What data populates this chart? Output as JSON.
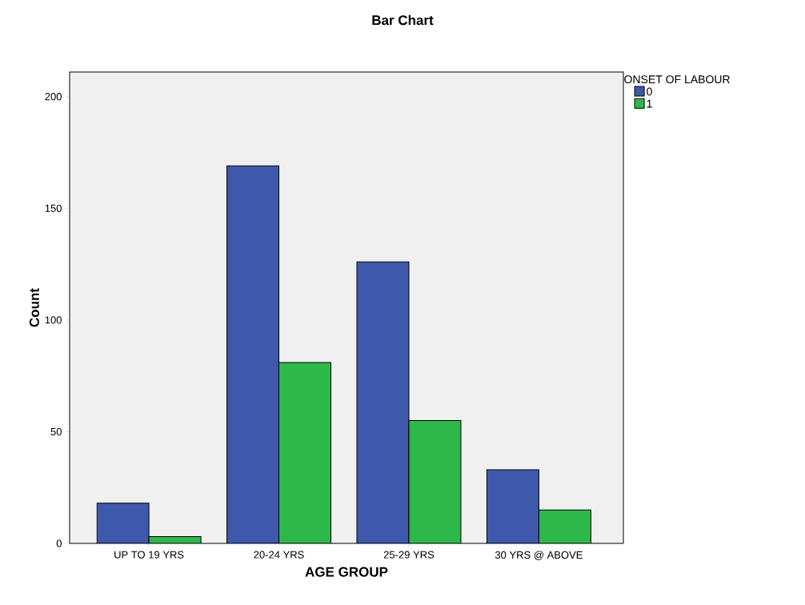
{
  "chart_data": {
    "type": "bar",
    "title": "Bar Chart",
    "xlabel": "AGE GROUP",
    "ylabel": "Count",
    "legend_title": "ONSET OF LABOUR",
    "categories": [
      "UP TO 19 YRS",
      "20-24 YRS",
      "25-29 YRS",
      "30 YRS @ ABOVE"
    ],
    "series": [
      {
        "name": "0",
        "color": "#3e58ac",
        "values": [
          18,
          169,
          126,
          33
        ]
      },
      {
        "name": "1",
        "color": "#2fb84a",
        "values": [
          3,
          81,
          55,
          15
        ]
      }
    ],
    "ylim": [
      0,
      211
    ],
    "yticks": [
      0,
      50,
      100,
      150,
      200
    ],
    "grid": false,
    "legend": "top right"
  }
}
